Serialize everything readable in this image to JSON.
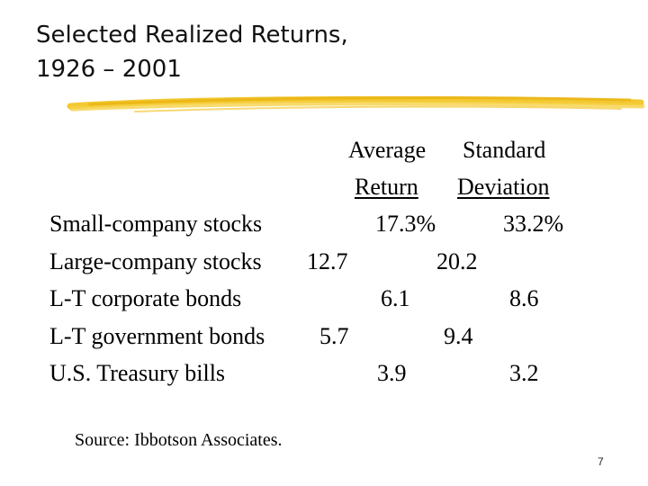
{
  "title": {
    "line1": "Selected Realized Returns,",
    "line2": "1926 – 2001"
  },
  "headers": {
    "average_line1": "Average",
    "average_line2": "Return",
    "stdev_line1": "Standard",
    "stdev_line2": "Deviation"
  },
  "rows": [
    {
      "label": "Small-company stocks",
      "average": "17.3%",
      "stdev": "33.2%"
    },
    {
      "label": "Large-company stocks",
      "average": "12.7",
      "stdev": "20.2"
    },
    {
      "label": "L-T corporate bonds",
      "average": "6.1",
      "stdev": "8.6"
    },
    {
      "label": "L-T government bonds",
      "average": "5.7",
      "stdev": "9.4"
    },
    {
      "label": "U.S. Treasury bills",
      "average": "3.9",
      "stdev": "3.2"
    }
  ],
  "source": "Source: Ibbotson Associates.",
  "page_number": "7",
  "colors": {
    "highlight_rule": "#f2c21b",
    "text": "#000000"
  }
}
